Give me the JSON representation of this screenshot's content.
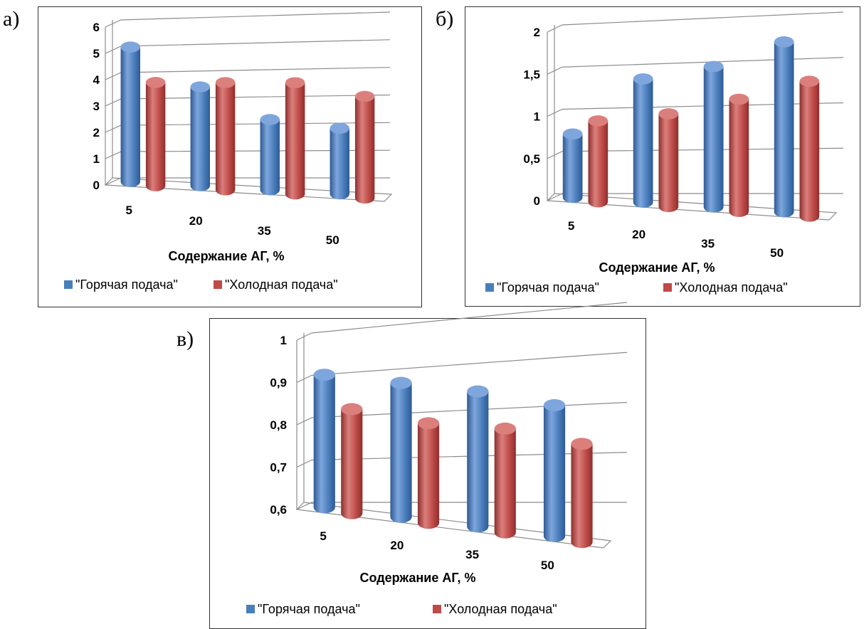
{
  "panels": [
    {
      "label": "а)"
    },
    {
      "label": "б)"
    },
    {
      "label": "в)"
    }
  ],
  "colors": {
    "hot": "#4a7ebb",
    "hot_light": "#7ea6dd",
    "hot_dark": "#2e5a94",
    "cold": "#be4b48",
    "cold_light": "#db7f7c",
    "cold_dark": "#8e2f2d",
    "grid": "#8c8c8c"
  },
  "chart_data": [
    {
      "type": "bar",
      "categories": [
        "5",
        "20",
        "35",
        "50"
      ],
      "xlabel": "Содержание АГ, %",
      "ylabel": "",
      "ylim": [
        0,
        6
      ],
      "yticks": [
        "0",
        "1",
        "2",
        "3",
        "4",
        "5",
        "6"
      ],
      "series": [
        {
          "name": "\"Горячая подача\"",
          "values": [
            5.1,
            3.7,
            2.6,
            2.4
          ]
        },
        {
          "name": "\"Холодная подача\"",
          "values": [
            3.9,
            4.0,
            4.1,
            3.7
          ]
        }
      ],
      "legend": "bottom",
      "grid": true
    },
    {
      "type": "bar",
      "categories": [
        "5",
        "20",
        "35",
        "50"
      ],
      "xlabel": "Содержание АГ, %",
      "ylabel": "",
      "ylim": [
        0,
        2
      ],
      "yticks": [
        "0",
        "0,5",
        "1",
        "1,5",
        "2"
      ],
      "series": [
        {
          "name": "\"Горячая подача\"",
          "values": [
            0.75,
            1.43,
            1.6,
            1.9
          ]
        },
        {
          "name": "\"Холодная подача\"",
          "values": [
            0.95,
            1.07,
            1.27,
            1.5
          ]
        }
      ],
      "legend": "bottom",
      "grid": true
    },
    {
      "type": "bar",
      "categories": [
        "5",
        "20",
        "35",
        "50"
      ],
      "xlabel": "Содержание АГ, %",
      "ylabel": "",
      "ylim": [
        0.6,
        1
      ],
      "yticks": [
        "0,6",
        "0,7",
        "0,8",
        "0,9",
        "1"
      ],
      "series": [
        {
          "name": "\"Горячая подача\"",
          "values": [
            0.91,
            0.9,
            0.89,
            0.87
          ]
        },
        {
          "name": "\"Холодная подача\"",
          "values": [
            0.84,
            0.82,
            0.82,
            0.8
          ]
        }
      ],
      "legend": "bottom",
      "grid": true
    }
  ]
}
